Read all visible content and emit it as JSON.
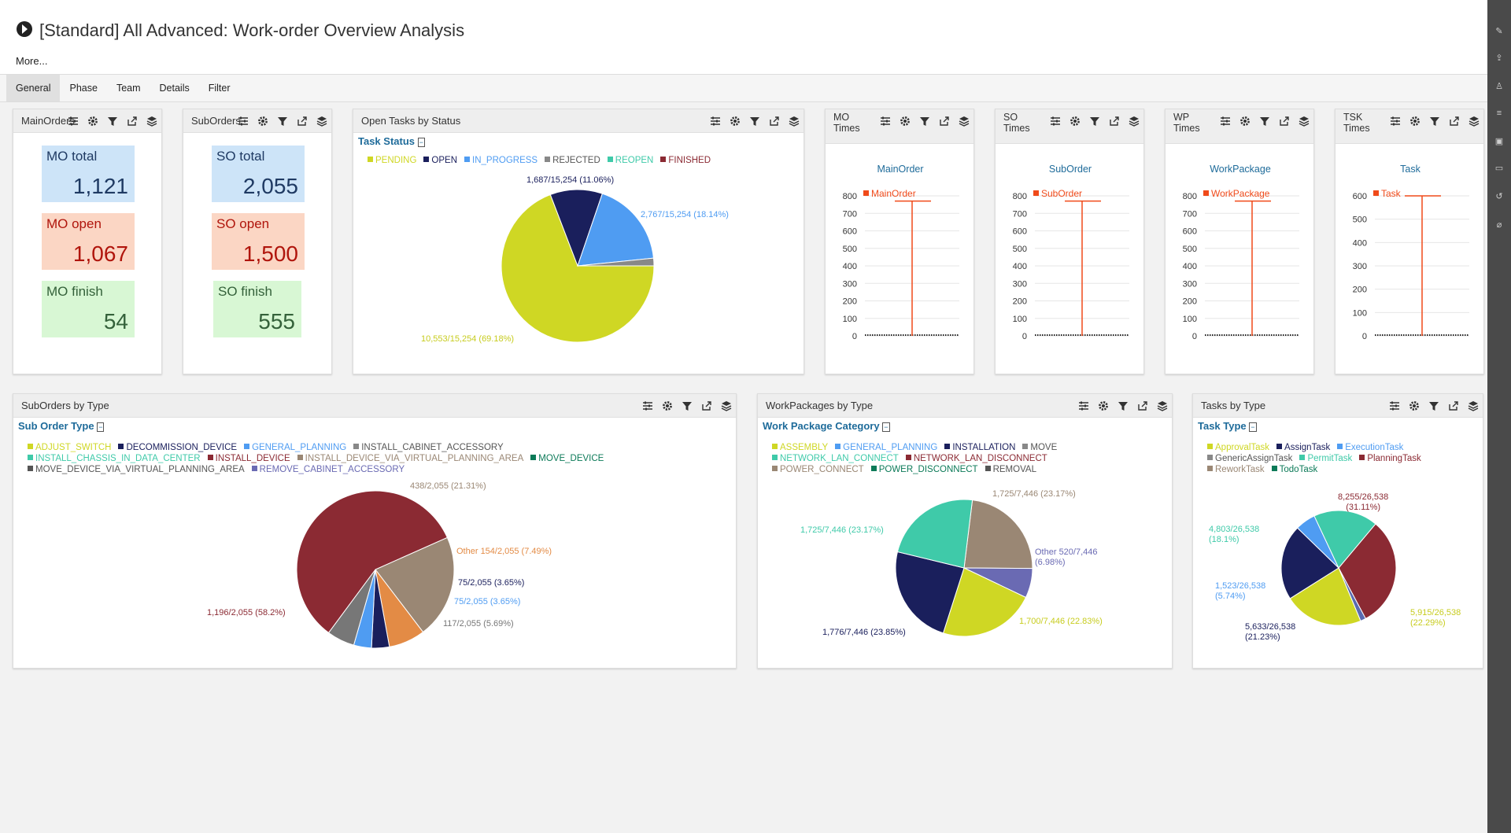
{
  "app": {
    "title": "[Standard] All Advanced: Work-order Overview Analysis",
    "more": "More..."
  },
  "tabs": [
    {
      "label": "General",
      "active": true
    },
    {
      "label": "Phase"
    },
    {
      "label": "Team"
    },
    {
      "label": "Details"
    },
    {
      "label": "Filter"
    }
  ],
  "panels": {
    "mainorders": {
      "title": "MainOrders",
      "kpis": [
        {
          "label": "MO total",
          "value": "1,121"
        },
        {
          "label": "MO open",
          "value": "1,067"
        },
        {
          "label": "MO finish",
          "value": "54"
        }
      ]
    },
    "suborders": {
      "title": "SubOrders",
      "kpis": [
        {
          "label": "SO total",
          "value": "2,055"
        },
        {
          "label": "SO open",
          "value": "1,500"
        },
        {
          "label": "SO finish",
          "value": "555"
        }
      ]
    },
    "open_tasks": {
      "title": "Open Tasks by Status",
      "legend_title": "Task Status",
      "legend": [
        {
          "name": "PENDING",
          "color": "#cfd724"
        },
        {
          "name": "OPEN",
          "color": "#1a1f5c"
        },
        {
          "name": "IN_PROGRESS",
          "color": "#4f9cf2"
        },
        {
          "name": "REJECTED",
          "color": "#888888"
        },
        {
          "name": "REOPEN",
          "color": "#3fcaa9"
        },
        {
          "name": "FINISHED",
          "color": "#8b2a33"
        }
      ],
      "labels": {
        "open": "1,687/15,254 (11.06%)",
        "in_progress": "2,767/15,254 (18.14%)",
        "pending": "10,553/15,254 (69.18%)"
      }
    },
    "mo_times": {
      "title1": "MO",
      "title2": "Times",
      "chart_title": "MainOrder",
      "series": "MainOrder"
    },
    "so_times": {
      "title1": "SO",
      "title2": "Times",
      "chart_title": "SubOrder",
      "series": "SubOrder"
    },
    "wp_times": {
      "title1": "WP",
      "title2": "Times",
      "chart_title": "WorkPackage",
      "series": "WorkPackage"
    },
    "tsk_times": {
      "title1": "TSK",
      "title2": "Times",
      "chart_title": "Task",
      "series": "Task"
    },
    "suborders_by_type": {
      "title": "SubOrders by Type",
      "legend_title": "Sub Order Type",
      "legend": [
        {
          "name": "ADJUST_SWITCH",
          "color": "#cfd724"
        },
        {
          "name": "DECOMMISSION_DEVICE",
          "color": "#1a1f5c"
        },
        {
          "name": "GENERAL_PLANNING",
          "color": "#4f9cf2"
        },
        {
          "name": "INSTALL_CABINET_ACCESSORY",
          "color": "#888888"
        },
        {
          "name": "INSTALL_CHASSIS_IN_DATA_CENTER",
          "color": "#3fcaa9"
        },
        {
          "name": "INSTALL_DEVICE",
          "color": "#8b2a33"
        },
        {
          "name": "INSTALL_DEVICE_VIA_VIRTUAL_PLANNING_AREA",
          "color": "#9a8774"
        },
        {
          "name": "MOVE_DEVICE",
          "color": "#0c7a58"
        },
        {
          "name": "MOVE_DEVICE_VIA_VIRTUAL_PLANNING_AREA",
          "color": "#555555"
        },
        {
          "name": "REMOVE_CABINET_ACCESSORY",
          "color": "#6a6ab3"
        }
      ],
      "labels": {
        "l1": "438/2,055 (21.31%)",
        "l2": "Other 154/2,055 (7.49%)",
        "l3": "75/2,055 (3.65%)",
        "l4": "75/2,055 (3.65%)",
        "l5": "117/2,055 (5.69%)",
        "l6": "1,196/2,055 (58.2%)"
      }
    },
    "workpackages_by_type": {
      "title": "WorkPackages by Type",
      "legend_title": "Work Package Category",
      "legend": [
        {
          "name": "ASSEMBLY",
          "color": "#cfd724"
        },
        {
          "name": "GENERAL_PLANNING",
          "color": "#4f9cf2"
        },
        {
          "name": "INSTALLATION",
          "color": "#1a1f5c"
        },
        {
          "name": "MOVE",
          "color": "#888888"
        },
        {
          "name": "NETWORK_LAN_CONNECT",
          "color": "#3fcaa9"
        },
        {
          "name": "NETWORK_LAN_DISCONNECT",
          "color": "#8b2a33"
        },
        {
          "name": "POWER_CONNECT",
          "color": "#9a8774"
        },
        {
          "name": "POWER_DISCONNECT",
          "color": "#0c7a58"
        },
        {
          "name": "REMOVAL",
          "color": "#555555"
        }
      ],
      "labels": {
        "l1": "1,725/7,446 (23.17%)",
        "l2": "1,725/7,446 (23.17%)",
        "l3a": "Other 520/7,446",
        "l3b": "(6.98%)",
        "l4": "1,700/7,446 (22.83%)",
        "l5": "1,776/7,446 (23.85%)"
      }
    },
    "tasks_by_type": {
      "title": "Tasks by Type",
      "legend_title": "Task Type",
      "legend": [
        {
          "name": "ApprovalTask",
          "color": "#cfd724"
        },
        {
          "name": "AssignTask",
          "color": "#1a1f5c"
        },
        {
          "name": "ExecutionTask",
          "color": "#4f9cf2"
        },
        {
          "name": "GenericAssignTask",
          "color": "#888888"
        },
        {
          "name": "PermitTask",
          "color": "#3fcaa9"
        },
        {
          "name": "PlanningTask",
          "color": "#8b2a33"
        },
        {
          "name": "ReworkTask",
          "color": "#9a8774"
        },
        {
          "name": "TodoTask",
          "color": "#0c7a58"
        }
      ],
      "labels": {
        "l1a": "8,255/26,538",
        "l1b": "(31.11%)",
        "l2a": "4,803/26,538",
        "l2b": "(18.1%)",
        "l3a": "1,523/26,538",
        "l3b": "(5.74%)",
        "l4a": "5,915/26,538",
        "l4b": "(22.29%)",
        "l5a": "5,633/26,538",
        "l5b": "(21.23%)"
      }
    }
  },
  "chart_data": [
    {
      "type": "pie",
      "title": "Task Status",
      "categories": [
        "PENDING",
        "OPEN",
        "IN_PROGRESS",
        "REJECTED"
      ],
      "values": [
        10553,
        1687,
        2767,
        247
      ],
      "colors": [
        "#cfd724",
        "#1a1f5c",
        "#4f9cf2",
        "#888888"
      ],
      "total": 15254
    },
    {
      "type": "line",
      "title": "MainOrder",
      "series": [
        {
          "name": "MainOrder",
          "spike": 770
        }
      ],
      "ylim": [
        0,
        800
      ],
      "yticks": [
        0,
        100,
        200,
        300,
        400,
        500,
        600,
        700,
        800
      ]
    },
    {
      "type": "line",
      "title": "SubOrder",
      "series": [
        {
          "name": "SubOrder",
          "spike": 770
        }
      ],
      "ylim": [
        0,
        800
      ],
      "yticks": [
        0,
        100,
        200,
        300,
        400,
        500,
        600,
        700,
        800
      ]
    },
    {
      "type": "line",
      "title": "WorkPackage",
      "series": [
        {
          "name": "WorkPackage",
          "spike": 770
        }
      ],
      "ylim": [
        0,
        800
      ],
      "yticks": [
        0,
        100,
        200,
        300,
        400,
        500,
        600,
        700,
        800
      ]
    },
    {
      "type": "line",
      "title": "Task",
      "series": [
        {
          "name": "Task",
          "spike": 600
        }
      ],
      "ylim": [
        0,
        600
      ],
      "yticks": [
        0,
        100,
        200,
        300,
        400,
        500,
        600
      ]
    },
    {
      "type": "pie",
      "title": "Sub Order Type",
      "categories": [
        "INSTALL_CABINET_ACCESSORY",
        "Other",
        "DECOMMISSION_DEVICE",
        "GENERAL_PLANNING",
        "MOVE_DEVICE_VIA_VIRTUAL_PLANNING_AREA",
        "INSTALL_DEVICE"
      ],
      "values": [
        438,
        154,
        75,
        75,
        117,
        1196
      ],
      "colors": [
        "#9a8774",
        "#e38b45",
        "#1a1f5c",
        "#4f9cf2",
        "#777777",
        "#8b2a33"
      ],
      "total": 2055
    },
    {
      "type": "pie",
      "title": "Work Package Category",
      "categories": [
        "MOVE",
        "Other",
        "ASSEMBLY",
        "INSTALLATION",
        "NETWORK_LAN_CONNECT"
      ],
      "values": [
        1725,
        520,
        1700,
        1776,
        1725
      ],
      "colors": [
        "#9a8774",
        "#6a6ab3",
        "#cfd724",
        "#1a1f5c",
        "#3fcaa9"
      ],
      "total": 7446
    },
    {
      "type": "pie",
      "title": "Task Type",
      "categories": [
        "PlanningTask",
        "Other",
        "ApprovalTask",
        "AssignTask",
        "ExecutionTask",
        "PermitTask"
      ],
      "values": [
        8255,
        409,
        5915,
        5633,
        1523,
        4803
      ],
      "colors": [
        "#8b2a33",
        "#5a6ab0",
        "#cfd724",
        "#1a1f5c",
        "#4f9cf2",
        "#3fcaa9"
      ],
      "total": 26538
    }
  ]
}
